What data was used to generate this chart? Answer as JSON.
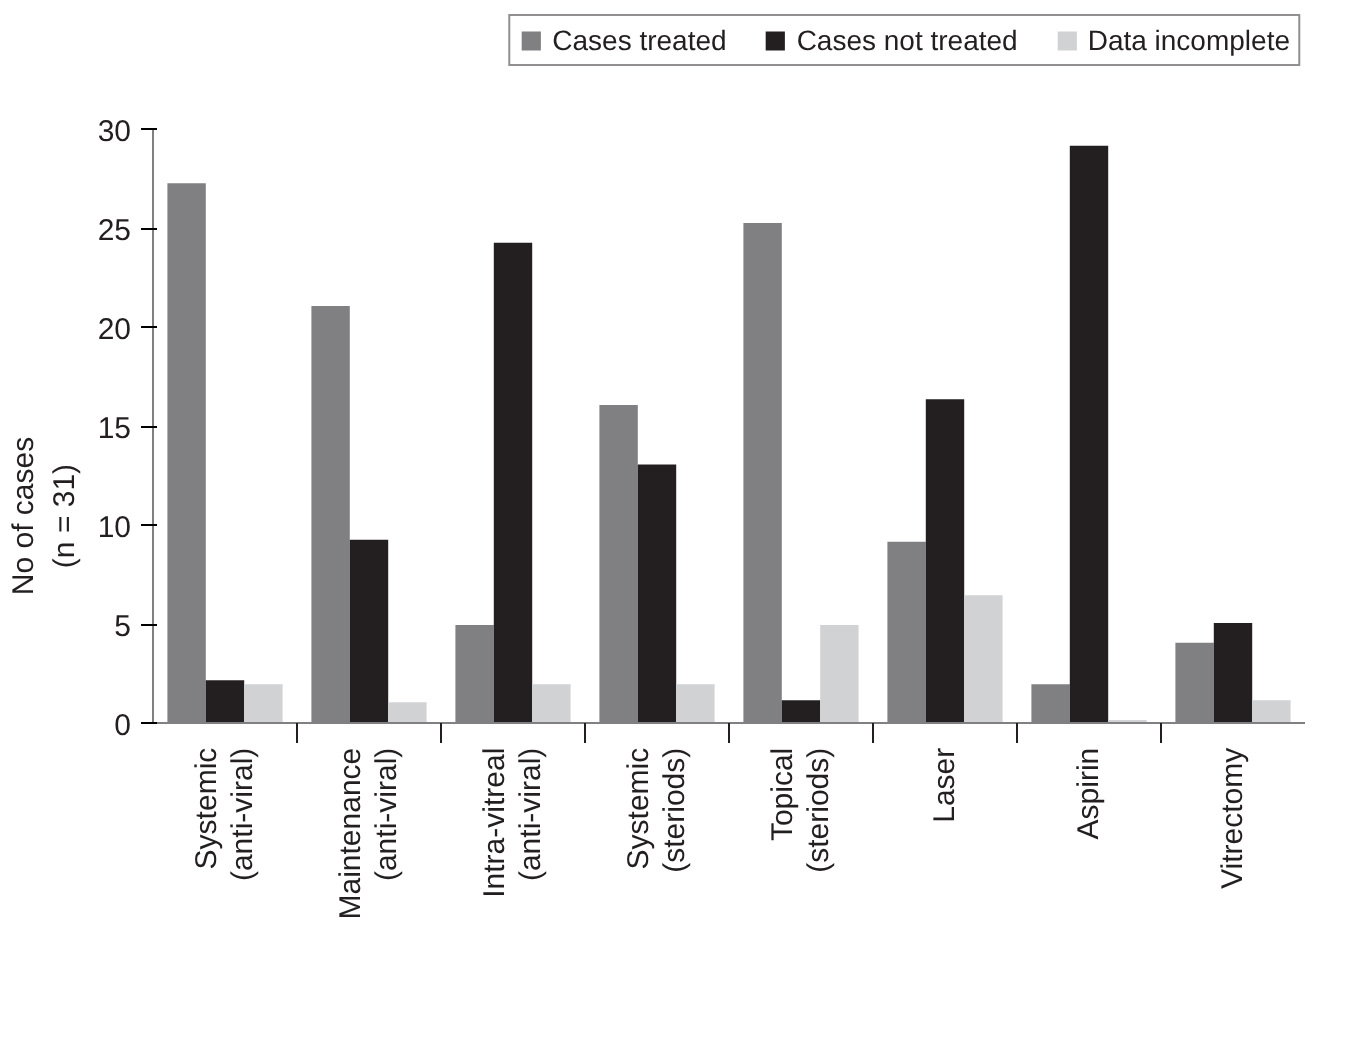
{
  "chart_data": {
    "type": "bar",
    "ylabel": "No of cases\n(n = 31)",
    "categories": [
      "Systemic\n(anti-viral)",
      "Maintenance\n(anti-viral)",
      "Intra-vitreal\n(anti-viral)",
      "Systemic\n(steriods)",
      "Topical\n(steriods)",
      "Laser",
      "Aspirin",
      "Vitrectomy"
    ],
    "series": [
      {
        "name": "Cases treated",
        "color": "#808083",
        "values": [
          27.3,
          21.1,
          5.0,
          16.1,
          25.3,
          9.2,
          2.0,
          4.1
        ]
      },
      {
        "name": "Cases not treated",
        "color": "#231f20",
        "values": [
          2.2,
          9.3,
          24.3,
          13.1,
          1.2,
          16.4,
          29.2,
          5.1
        ]
      },
      {
        "name": "Data incomplete",
        "color": "#d1d2d4",
        "values": [
          2.0,
          1.1,
          2.0,
          2.0,
          5.0,
          6.5,
          0.2,
          1.2
        ]
      }
    ],
    "ylim": [
      0,
      30
    ],
    "yticks": [
      0,
      5,
      10,
      15,
      20,
      25,
      30
    ],
    "grid": false,
    "legend": "top"
  }
}
